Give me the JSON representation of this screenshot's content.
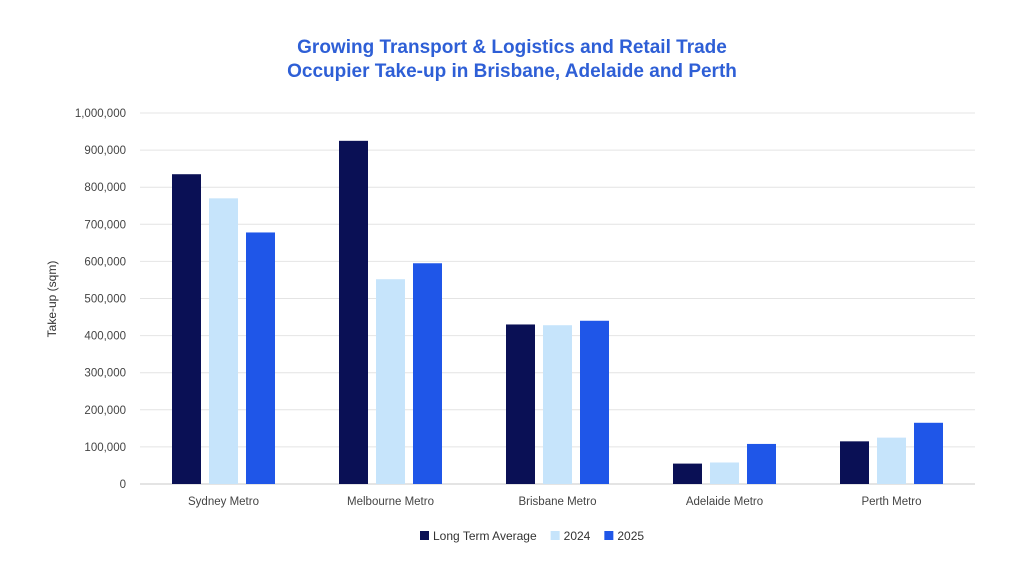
{
  "chart_data": {
    "type": "bar",
    "title_lines": [
      "Growing Transport & Logistics and Retail Trade",
      "Occupier Take-up in Brisbane, Adelaide and Perth"
    ],
    "xlabel": "",
    "ylabel": "Take-up (sqm)",
    "ylim": [
      0,
      1000000
    ],
    "yticks": [
      0,
      100000,
      200000,
      300000,
      400000,
      500000,
      600000,
      700000,
      800000,
      900000,
      1000000
    ],
    "ytick_labels": [
      "0",
      "100,000",
      "200,000",
      "300,000",
      "400,000",
      "500,000",
      "600,000",
      "700,000",
      "800,000",
      "900,000",
      "1,000,000"
    ],
    "grid": true,
    "legend_position": "bottom",
    "categories": [
      "Sydney Metro",
      "Melbourne Metro",
      "Brisbane Metro",
      "Adelaide Metro",
      "Perth Metro"
    ],
    "series": [
      {
        "name": "Long Term Average",
        "color": "#0a1055",
        "values": [
          835000,
          925000,
          430000,
          55000,
          115000
        ]
      },
      {
        "name": "2024",
        "color": "#c6e4fb",
        "values": [
          770000,
          552000,
          428000,
          58000,
          125000
        ]
      },
      {
        "name": "2025",
        "color": "#1f56e8",
        "values": [
          678000,
          595000,
          440000,
          108000,
          165000
        ]
      }
    ]
  }
}
